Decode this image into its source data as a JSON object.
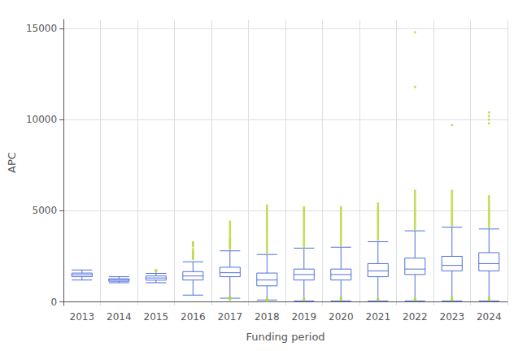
{
  "chart_data": {
    "type": "boxplot",
    "xlabel": "Funding period",
    "ylabel": "APC",
    "categories": [
      "2013",
      "2014",
      "2015",
      "2016",
      "2017",
      "2018",
      "2019",
      "2020",
      "2021",
      "2022",
      "2023",
      "2024"
    ],
    "boxes": [
      {
        "q1": 1380,
        "median": 1490,
        "q3": 1580,
        "whislo": 1200,
        "whishi": 1750,
        "fliers": []
      },
      {
        "q1": 1130,
        "median": 1200,
        "q3": 1270,
        "whislo": 1050,
        "whishi": 1380,
        "fliers": []
      },
      {
        "q1": 1190,
        "median": 1310,
        "q3": 1420,
        "whislo": 1050,
        "whishi": 1560,
        "fliers": [
          1650,
          1700,
          1750
        ]
      },
      {
        "q1": 1200,
        "median": 1420,
        "q3": 1660,
        "whislo": 370,
        "whishi": 2200,
        "fliers": [
          2350,
          2420,
          2500,
          2580,
          2650,
          2720,
          2800,
          2900,
          3050,
          3150,
          3200,
          3280
        ]
      },
      {
        "q1": 1380,
        "median": 1600,
        "q3": 1900,
        "whislo": 200,
        "whishi": 2800,
        "fliers": [
          2900,
          2980,
          3050,
          3120,
          3200,
          3280,
          3350,
          3420,
          3500,
          3600,
          3700,
          3800,
          3900,
          4000,
          4100,
          4200,
          4300,
          4400,
          150,
          120,
          250,
          300
        ]
      },
      {
        "q1": 880,
        "median": 1200,
        "q3": 1580,
        "whislo": 100,
        "whishi": 2600,
        "fliers": [
          2700,
          2800,
          2900,
          3000,
          3100,
          3200,
          3300,
          3400,
          3500,
          3600,
          3700,
          3800,
          3900,
          4000,
          4100,
          4200,
          4300,
          4400,
          4500,
          4600,
          4700,
          4800,
          4900,
          5000,
          5100,
          5200,
          5300,
          50,
          80,
          120,
          150,
          180
        ]
      },
      {
        "q1": 1200,
        "median": 1500,
        "q3": 1800,
        "whislo": 50,
        "whishi": 2950,
        "fliers": [
          3000,
          3100,
          3200,
          3300,
          3400,
          3500,
          3600,
          3700,
          3800,
          3900,
          4000,
          4100,
          4200,
          4300,
          4400,
          4500,
          4600,
          4700,
          4800,
          4900,
          5000,
          5100,
          5200,
          100,
          150,
          200
        ]
      },
      {
        "q1": 1200,
        "median": 1500,
        "q3": 1800,
        "whislo": 50,
        "whishi": 3000,
        "fliers": [
          3100,
          3200,
          3300,
          3400,
          3500,
          3600,
          3700,
          3800,
          3900,
          4000,
          4100,
          4200,
          4300,
          4400,
          4500,
          4600,
          4700,
          4800,
          4900,
          5000,
          5100,
          5200,
          100,
          150,
          200,
          250
        ]
      },
      {
        "q1": 1380,
        "median": 1700,
        "q3": 2100,
        "whislo": 50,
        "whishi": 3300,
        "fliers": [
          3400,
          3500,
          3600,
          3700,
          3800,
          3900,
          4000,
          4100,
          4200,
          4300,
          4400,
          4500,
          4600,
          4700,
          4800,
          4900,
          5000,
          5100,
          5200,
          5300,
          5400,
          100,
          150,
          200
        ]
      },
      {
        "q1": 1500,
        "median": 1800,
        "q3": 2400,
        "whislo": 50,
        "whishi": 3900,
        "fliers": [
          4000,
          4100,
          4200,
          4300,
          4400,
          4500,
          4600,
          4700,
          4800,
          4900,
          5000,
          5100,
          5200,
          5300,
          5400,
          5500,
          5600,
          5700,
          5800,
          5900,
          6000,
          6100,
          11800,
          14800,
          100,
          150,
          200
        ]
      },
      {
        "q1": 1700,
        "median": 2000,
        "q3": 2500,
        "whislo": 50,
        "whishi": 4100,
        "fliers": [
          4200,
          4300,
          4400,
          4500,
          4600,
          4700,
          4800,
          4900,
          5000,
          5100,
          5200,
          5300,
          5400,
          5500,
          5600,
          5700,
          5800,
          5900,
          6000,
          6100,
          9700,
          100,
          150,
          200,
          250
        ]
      },
      {
        "q1": 1700,
        "median": 2100,
        "q3": 2700,
        "whislo": 50,
        "whishi": 4000,
        "fliers": [
          4100,
          4200,
          4300,
          4400,
          4500,
          4600,
          4700,
          4800,
          4900,
          5000,
          5100,
          5200,
          5300,
          5400,
          5500,
          5600,
          5700,
          5800,
          9800,
          10000,
          10200,
          10400,
          100,
          150,
          200,
          250
        ]
      }
    ],
    "ylim": [
      -200,
      15500
    ],
    "yticks": [
      0,
      5000,
      10000,
      15000
    ],
    "grid": true
  }
}
